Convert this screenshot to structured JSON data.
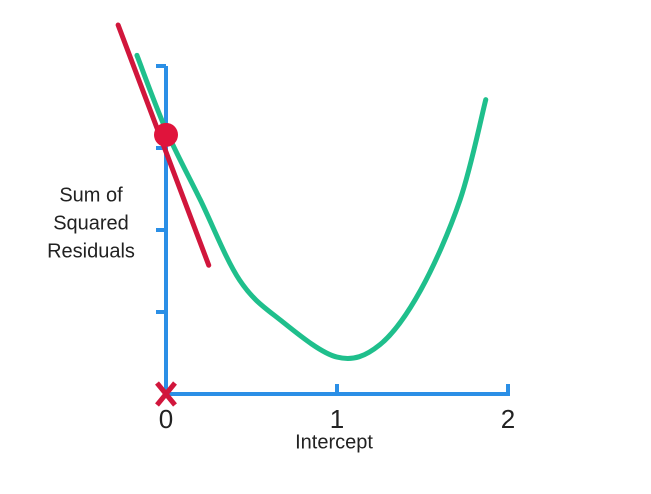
{
  "chart_data": {
    "type": "line",
    "y_label": [
      "Sum of",
      "Squared",
      "Residuals"
    ],
    "x_label": "Intercept",
    "xlim": [
      0,
      2
    ],
    "xticks": [
      0,
      1,
      2
    ],
    "ylim": [
      0,
      4
    ],
    "yticks": [
      1,
      2,
      3,
      4
    ],
    "axis_color": "#2b8fe6",
    "series": [
      {
        "color": "#1fbf8c",
        "marker": "none",
        "x": [
          -0.17,
          0,
          0.2,
          0.43,
          0.67,
          1.0,
          1.25,
          1.49,
          1.72,
          1.87
        ],
        "values": [
          4.13,
          3.22,
          2.37,
          1.39,
          0.9,
          0.45,
          0.6,
          1.27,
          2.37,
          3.59
        ]
      },
      {
        "color": "#d1163c",
        "marker": "none",
        "x": [
          -0.28,
          0.25
        ],
        "values": [
          4.5,
          1.57
        ]
      },
      {
        "color": "#e0143c",
        "marker": "circle",
        "x": [
          0
        ],
        "values": [
          3.16
        ]
      },
      {
        "color": "#d1163c",
        "marker": "cross",
        "x": [
          0
        ],
        "values": [
          0
        ]
      }
    ]
  }
}
